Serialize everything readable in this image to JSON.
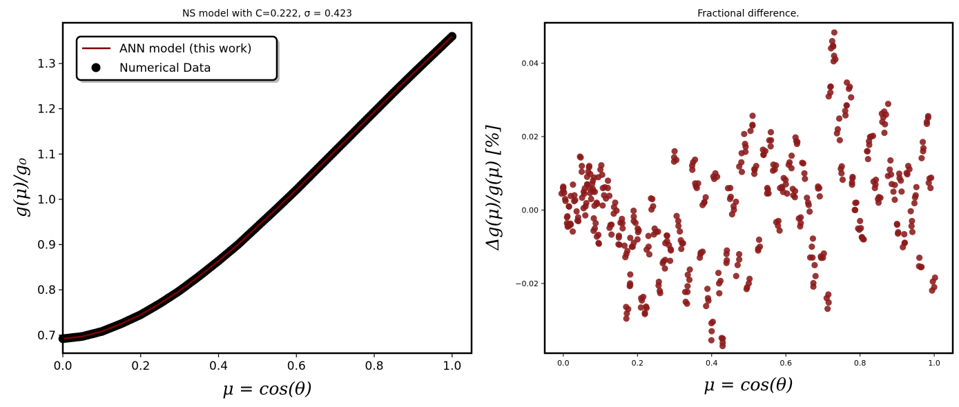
{
  "chart_data": [
    {
      "type": "line",
      "title": "NS model with C=0.222, σ = 0.423",
      "xlabel": "μ = cos(θ)",
      "ylabel": "g(μ)/g₀",
      "xlim": [
        0.0,
        1.05
      ],
      "ylim": [
        0.66,
        1.39
      ],
      "xticks": [
        "0.0",
        "0.2",
        "0.4",
        "0.6",
        "0.8",
        "1.0"
      ],
      "yticks": [
        "0.7",
        "0.8",
        "0.9",
        "1.0",
        "1.1",
        "1.2",
        "1.3"
      ],
      "grid": false,
      "legend_position": "upper-left",
      "legend": [
        {
          "label": "ANN model (this work)",
          "kind": "line",
          "color": "#800000"
        },
        {
          "label": "Numerical Data",
          "kind": "scatter",
          "color": "#000000"
        }
      ],
      "series": [
        {
          "name": "Numerical Data",
          "kind": "scatter",
          "color": "#000000",
          "x": [
            0.0,
            0.05,
            0.1,
            0.15,
            0.2,
            0.25,
            0.3,
            0.35,
            0.4,
            0.45,
            0.5,
            0.55,
            0.6,
            0.65,
            0.7,
            0.75,
            0.8,
            0.85,
            0.9,
            0.95,
            1.0
          ],
          "y": [
            0.692,
            0.697,
            0.708,
            0.725,
            0.745,
            0.77,
            0.798,
            0.83,
            0.864,
            0.9,
            0.94,
            0.98,
            1.021,
            1.064,
            1.107,
            1.15,
            1.193,
            1.236,
            1.278,
            1.319,
            1.36
          ]
        },
        {
          "name": "ANN model (this work)",
          "kind": "line",
          "color": "#800000",
          "x": [
            0.0,
            0.05,
            0.1,
            0.15,
            0.2,
            0.25,
            0.3,
            0.35,
            0.4,
            0.45,
            0.5,
            0.55,
            0.6,
            0.65,
            0.7,
            0.75,
            0.8,
            0.85,
            0.9,
            0.95,
            1.0
          ],
          "y": [
            0.692,
            0.697,
            0.708,
            0.725,
            0.745,
            0.77,
            0.798,
            0.83,
            0.864,
            0.9,
            0.94,
            0.98,
            1.021,
            1.064,
            1.107,
            1.15,
            1.193,
            1.236,
            1.278,
            1.319,
            1.36
          ]
        }
      ]
    },
    {
      "type": "scatter",
      "title": "Fractional difference.",
      "xlabel": "μ = cos(θ)",
      "ylabel": "Δg(μ)/g(μ) [%]",
      "xlim": [
        -0.05,
        1.05
      ],
      "ylim": [
        -0.039,
        0.051
      ],
      "xticks": [
        "0.0",
        "0.2",
        "0.4",
        "0.6",
        "0.8",
        "1.0"
      ],
      "yticks": [
        "−0.02",
        "0.00",
        "0.02",
        "0.04"
      ],
      "grid": false,
      "series": [
        {
          "name": "",
          "color": "#8b1a1a",
          "x": [
            0.0,
            0.005,
            0.01,
            0.015,
            0.02,
            0.03,
            0.04,
            0.05,
            0.055,
            0.06,
            0.065,
            0.07,
            0.075,
            0.08,
            0.085,
            0.09,
            0.095,
            0.1,
            0.11,
            0.12,
            0.13,
            0.14,
            0.15,
            0.16,
            0.17,
            0.175,
            0.18,
            0.185,
            0.19,
            0.2,
            0.21,
            0.22,
            0.23,
            0.24,
            0.25,
            0.26,
            0.27,
            0.28,
            0.29,
            0.3,
            0.31,
            0.32,
            0.33,
            0.34,
            0.35,
            0.36,
            0.37,
            0.38,
            0.39,
            0.4,
            0.41,
            0.42,
            0.43,
            0.44,
            0.45,
            0.46,
            0.47,
            0.48,
            0.49,
            0.5,
            0.51,
            0.52,
            0.53,
            0.54,
            0.55,
            0.56,
            0.57,
            0.58,
            0.59,
            0.6,
            0.61,
            0.62,
            0.63,
            0.64,
            0.65,
            0.66,
            0.67,
            0.68,
            0.69,
            0.7,
            0.71,
            0.72,
            0.725,
            0.73,
            0.74,
            0.75,
            0.76,
            0.77,
            0.78,
            0.79,
            0.8,
            0.81,
            0.82,
            0.83,
            0.84,
            0.85,
            0.86,
            0.87,
            0.88,
            0.89,
            0.9,
            0.91,
            0.92,
            0.93,
            0.94,
            0.95,
            0.96,
            0.97,
            0.98,
            0.99,
            1.0
          ],
          "y": [
            0.006,
            0.003,
            -0.002,
            0.001,
            -0.004,
            0.004,
            -0.002,
            0.012,
            0.005,
            0.001,
            0.007,
            0.012,
            0.003,
            0.008,
            -0.005,
            0.002,
            -0.009,
            0.011,
            0.004,
            0.006,
            -0.004,
            0.002,
            -0.007,
            -0.005,
            -0.012,
            -0.027,
            -0.02,
            -0.01,
            -0.003,
            -0.008,
            -0.024,
            -0.028,
            -0.01,
            0.003,
            -0.006,
            -0.022,
            -0.014,
            -0.007,
            -0.011,
            0.016,
            -0.003,
            -0.009,
            -0.025,
            -0.019,
            0.013,
            0.006,
            -0.012,
            0.002,
            -0.024,
            -0.033,
            0.01,
            -0.02,
            -0.035,
            -0.012,
            0.006,
            0.0,
            -0.015,
            0.013,
            0.018,
            -0.02,
            0.023,
            0.012,
            -0.01,
            0.015,
            0.006,
            0.019,
            0.011,
            -0.003,
            0.006,
            0.007,
            0.013,
            0.004,
            0.018,
            -0.002,
            0.01,
            0.002,
            -0.01,
            -0.018,
            0.006,
            -0.013,
            -0.024,
            0.032,
            0.046,
            0.042,
            0.022,
            0.01,
            0.027,
            0.033,
            0.009,
            0.002,
            -0.003,
            -0.008,
            0.016,
            0.02,
            0.006,
            0.002,
            0.024,
            0.026,
            0.011,
            0.005,
            -0.004,
            0.008,
            -0.009,
            0.012,
            -0.003,
            0.004,
            -0.013,
            0.016,
            0.024,
            0.006,
            -0.021
          ]
        }
      ]
    }
  ]
}
